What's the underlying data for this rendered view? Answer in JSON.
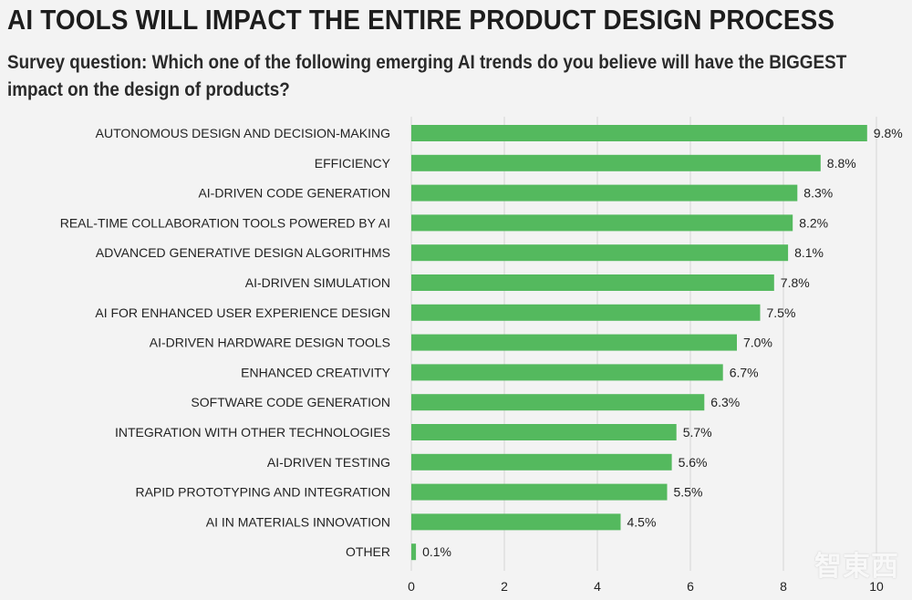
{
  "header": {
    "title": "AI TOOLS WILL IMPACT THE ENTIRE PRODUCT DESIGN PROCESS",
    "subtitle": "Survey question: Which one of the following emerging AI trends do you believe will have the BIGGEST impact on the design of products?"
  },
  "watermark": "智東西",
  "colors": {
    "bar": "#54b95e",
    "grid": "#d6d6d6",
    "background": "#f3f3f3"
  },
  "chart_data": {
    "type": "bar",
    "orientation": "horizontal",
    "title": "AI TOOLS WILL IMPACT THE ENTIRE PRODUCT DESIGN PROCESS",
    "xlabel": "",
    "ylabel": "",
    "xlim": [
      0,
      10
    ],
    "xticks": [
      0,
      2,
      4,
      6,
      8,
      10
    ],
    "grid": true,
    "value_suffix": "%",
    "categories": [
      "AUTONOMOUS DESIGN AND DECISION-MAKING",
      "EFFICIENCY",
      "AI-DRIVEN CODE GENERATION",
      "REAL-TIME COLLABORATION TOOLS POWERED BY AI",
      "ADVANCED GENERATIVE DESIGN ALGORITHMS",
      "AI-DRIVEN SIMULATION",
      "AI FOR ENHANCED USER EXPERIENCE DESIGN",
      "AI-DRIVEN HARDWARE DESIGN TOOLS",
      "ENHANCED CREATIVITY",
      "SOFTWARE CODE GENERATION",
      "INTEGRATION WITH OTHER TECHNOLOGIES",
      "AI-DRIVEN TESTING",
      "RAPID PROTOTYPING AND INTEGRATION",
      "AI IN MATERIALS INNOVATION",
      "OTHER"
    ],
    "values": [
      9.8,
      8.8,
      8.3,
      8.2,
      8.1,
      7.8,
      7.5,
      7.0,
      6.7,
      6.3,
      5.7,
      5.6,
      5.5,
      4.5,
      0.1
    ],
    "value_labels": [
      "9.8%",
      "8.8%",
      "8.3%",
      "8.2%",
      "8.1%",
      "7.8%",
      "7.5%",
      "7.0%",
      "6.7%",
      "6.3%",
      "5.7%",
      "5.6%",
      "5.5%",
      "4.5%",
      "0.1%"
    ]
  }
}
